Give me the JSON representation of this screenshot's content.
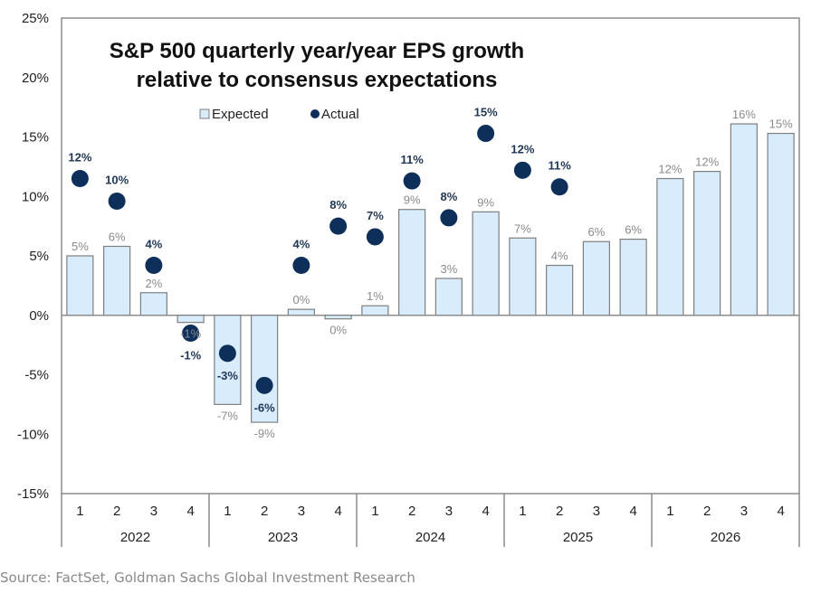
{
  "chart_data": {
    "type": "bar",
    "title_lines": [
      "S&P 500 quarterly year/year EPS growth",
      "relative to consensus expectations"
    ],
    "xlabel": "",
    "ylabel": "",
    "ylim": [
      -15,
      25
    ],
    "yticks": [
      25,
      20,
      15,
      10,
      5,
      0,
      -5,
      -10,
      -15
    ],
    "ytick_labels": [
      "25%",
      "20%",
      "15%",
      "10%",
      "5%",
      "0%",
      "-5%",
      "-10%",
      "-15%"
    ],
    "grid": false,
    "legend_position": "top-center",
    "categories": [
      "1",
      "2",
      "3",
      "4",
      "1",
      "2",
      "3",
      "4",
      "1",
      "2",
      "3",
      "4",
      "1",
      "2",
      "3",
      "4",
      "1",
      "2",
      "3",
      "4"
    ],
    "years": [
      "2022",
      "2023",
      "2024",
      "2025",
      "2026"
    ],
    "series": [
      {
        "name": "Expected",
        "kind": "bar",
        "color": "#d9ecfb",
        "edge_color": "#7f7f7f",
        "values": [
          5.0,
          5.8,
          1.9,
          -0.6,
          -7.5,
          -9.0,
          0.5,
          -0.3,
          0.8,
          8.9,
          3.1,
          8.7,
          6.5,
          4.2,
          6.2,
          6.4,
          11.5,
          12.1,
          16.1,
          15.3
        ],
        "labels": [
          "5%",
          "6%",
          "2%",
          "-1%",
          "-7%",
          "-9%",
          "0%",
          "0%",
          "1%",
          "9%",
          "3%",
          "9%",
          "7%",
          "4%",
          "6%",
          "6%",
          "12%",
          "12%",
          "16%",
          "15%"
        ]
      },
      {
        "name": "Actual",
        "kind": "scatter",
        "color": "#0d2f5a",
        "values": [
          11.5,
          9.6,
          4.2,
          -1.5,
          -3.2,
          -5.9,
          4.2,
          7.5,
          6.6,
          11.3,
          8.2,
          15.3,
          12.2,
          10.8,
          null,
          null,
          null,
          null,
          null,
          null
        ],
        "labels": [
          "12%",
          "10%",
          "4%",
          "-1%",
          "-3%",
          "-6%",
          "4%",
          "8%",
          "7%",
          "11%",
          "8%",
          "15%",
          "12%",
          "11%",
          null,
          null,
          null,
          null,
          null,
          null
        ]
      }
    ],
    "source": "Source: FactSet, Goldman Sachs Global Investment Research"
  }
}
